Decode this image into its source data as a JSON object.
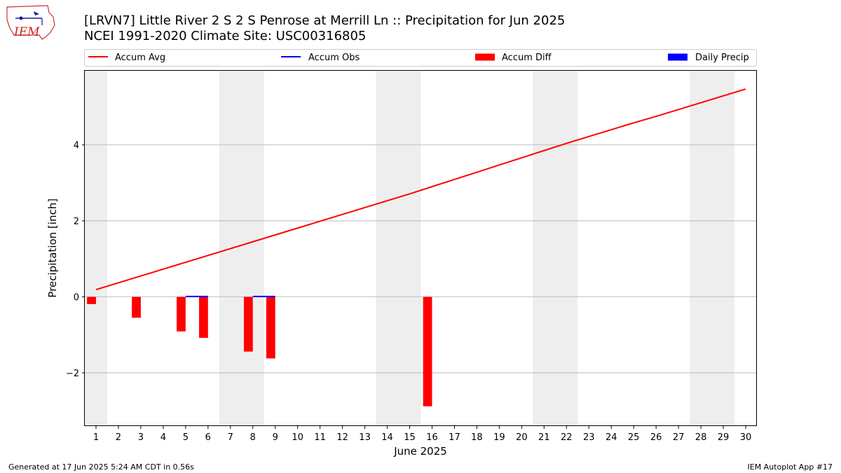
{
  "header": {
    "logo_text": "IEM",
    "title_line1": "[LRVN7] Little River 2 S 2 S Penrose at Merrill Ln :: Precipitation for Jun 2025",
    "title_line2": "NCEI 1991-2020 Climate Site: USC00316805"
  },
  "legend": {
    "accum_avg": "Accum Avg",
    "accum_obs": "Accum Obs",
    "accum_diff": "Accum Diff",
    "daily_precip": "Daily Precip"
  },
  "footer": {
    "left": "Generated at 17 Jun 2025 5:24 AM CDT in 0.56s",
    "right": "IEM Autoplot App #17"
  },
  "colors": {
    "avg": "#ff0000",
    "obs": "#0000ff",
    "diff": "#ff0000",
    "daily": "#0000ff",
    "weekend": "#eeeeee",
    "grid": "#b0b0b0"
  },
  "chart_data": {
    "type": "bar",
    "title": "[LRVN7] Little River 2 S 2 S Penrose at Merrill Ln :: Precipitation for Jun 2025",
    "subtitle": "NCEI 1991-2020 Climate Site: USC00316805",
    "xlabel": "June 2025",
    "ylabel": "Precipitation [inch]",
    "x": [
      1,
      2,
      3,
      4,
      5,
      6,
      7,
      8,
      9,
      10,
      11,
      12,
      13,
      14,
      15,
      16,
      17,
      18,
      19,
      20,
      21,
      22,
      23,
      24,
      25,
      26,
      27,
      28,
      29,
      30
    ],
    "xlim": [
      0.5,
      30.5
    ],
    "ylim": [
      -3.4,
      5.95
    ],
    "yticks": [
      -2,
      0,
      2,
      4
    ],
    "grid": true,
    "legend_position": "top",
    "weekend_bands": [
      [
        0.5,
        1.5
      ],
      [
        6.5,
        8.5
      ],
      [
        13.5,
        15.5
      ],
      [
        20.5,
        22.5
      ],
      [
        27.5,
        29.5
      ]
    ],
    "series": [
      {
        "name": "Accum Avg",
        "type": "line",
        "values": [
          0.19,
          0.37,
          0.55,
          0.73,
          0.91,
          1.09,
          1.27,
          1.45,
          1.63,
          1.81,
          1.99,
          2.17,
          2.35,
          2.53,
          2.71,
          2.9,
          3.09,
          3.28,
          3.47,
          3.66,
          3.85,
          4.04,
          4.22,
          4.4,
          4.58,
          4.75,
          4.93,
          5.11,
          5.29,
          5.47
        ]
      },
      {
        "name": "Accum Obs",
        "type": "line",
        "x": [
          5,
          6,
          8,
          9
        ],
        "segments": [
          [
            5,
            6
          ],
          [
            8,
            9
          ]
        ],
        "values": [
          0.01,
          0.01,
          0.01,
          0.01
        ]
      },
      {
        "name": "Accum Diff",
        "type": "bar",
        "x": [
          1,
          3,
          5,
          6,
          8,
          9,
          16
        ],
        "values": [
          -0.19,
          -0.55,
          -0.91,
          -1.08,
          -1.44,
          -1.62,
          -2.88
        ]
      },
      {
        "name": "Daily Precip",
        "type": "bar",
        "x": [],
        "values": []
      }
    ]
  }
}
